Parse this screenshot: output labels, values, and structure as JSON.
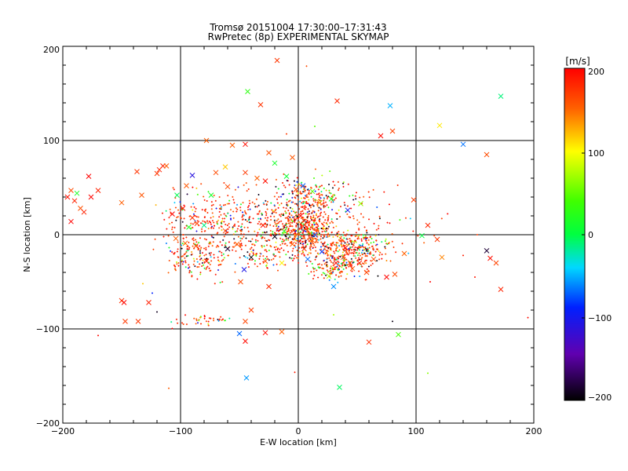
{
  "chart_data": {
    "type": "scatter",
    "title": "Tromsø 20151004 17:30:00–17:31:43",
    "subtitle": "RwPretec (8p) EXPERIMENTAL SKYMAP",
    "xlabel": "E-W location [km]",
    "ylabel": "N-S location [km]",
    "xlim": [
      -200,
      200
    ],
    "ylim": [
      -200,
      200
    ],
    "xticks": [
      "−200",
      "−100",
      "0",
      "100",
      "200"
    ],
    "yticks": [
      "−200",
      "−100",
      "0",
      "100",
      "200"
    ],
    "grid": true,
    "colorbar": {
      "unit": "[m/s]",
      "min": -200,
      "max": 200,
      "ticks": [
        "200",
        "100",
        "0",
        "−100",
        "−200"
      ]
    },
    "markers": {
      "cross": "x",
      "dot": "+"
    },
    "series": [
      {
        "marker": "x",
        "points": [
          [
            -18,
            185
          ],
          [
            -43,
            152
          ],
          [
            -32,
            138
          ],
          [
            33,
            142
          ],
          [
            78,
            137
          ],
          [
            120,
            116
          ],
          [
            172,
            147
          ],
          [
            80,
            110
          ],
          [
            70,
            105
          ],
          [
            140,
            96
          ],
          [
            160,
            85
          ],
          [
            -45,
            96
          ],
          [
            -78,
            100
          ],
          [
            -56,
            95
          ],
          [
            -25,
            87
          ],
          [
            -20,
            76
          ],
          [
            -5,
            82
          ],
          [
            -115,
            73
          ],
          [
            -118,
            69
          ],
          [
            -112,
            73
          ],
          [
            -120,
            65
          ],
          [
            -90,
            63
          ],
          [
            -70,
            66
          ],
          [
            -62,
            72
          ],
          [
            -95,
            52
          ],
          [
            -137,
            67
          ],
          [
            -178,
            62
          ],
          [
            -193,
            47
          ],
          [
            -188,
            44
          ],
          [
            -196,
            40
          ],
          [
            -190,
            36
          ],
          [
            -185,
            28
          ],
          [
            -182,
            24
          ],
          [
            -170,
            47
          ],
          [
            -176,
            40
          ],
          [
            -150,
            34
          ],
          [
            -133,
            42
          ],
          [
            -193,
            14
          ],
          [
            -45,
            66
          ],
          [
            -35,
            60
          ],
          [
            -28,
            57
          ],
          [
            -10,
            62
          ],
          [
            -2,
            48
          ],
          [
            4,
            52
          ],
          [
            12,
            46
          ],
          [
            18,
            34
          ],
          [
            28,
            38
          ],
          [
            42,
            26
          ],
          [
            53,
            33
          ],
          [
            -60,
            51
          ],
          [
            -74,
            42
          ],
          [
            -103,
            42
          ],
          [
            -98,
            28
          ],
          [
            -107,
            22
          ],
          [
            -90,
            18
          ],
          [
            -86,
            12
          ],
          [
            -93,
            8
          ],
          [
            -104,
            -4
          ],
          [
            -96,
            -9
          ],
          [
            -87,
            -12
          ],
          [
            -60,
            -15
          ],
          [
            -40,
            -24
          ],
          [
            -28,
            -28
          ],
          [
            -14,
            -30
          ],
          [
            8,
            -26
          ],
          [
            20,
            -18
          ],
          [
            32,
            -30
          ],
          [
            38,
            -24
          ],
          [
            46,
            -36
          ],
          [
            52,
            -30
          ],
          [
            58,
            -40
          ],
          [
            64,
            -26
          ],
          [
            75,
            -45
          ],
          [
            82,
            -42
          ],
          [
            -46,
            -37
          ],
          [
            -49,
            -50
          ],
          [
            -25,
            -55
          ],
          [
            -40,
            -80
          ],
          [
            -45,
            -92
          ],
          [
            -150,
            -70
          ],
          [
            -148,
            -72
          ],
          [
            -127,
            -72
          ],
          [
            -147,
            -92
          ],
          [
            -136,
            -92
          ],
          [
            -50,
            -105
          ],
          [
            -45,
            -113
          ],
          [
            -44,
            -152
          ],
          [
            -28,
            -104
          ],
          [
            -14,
            -103
          ],
          [
            60,
            -114
          ],
          [
            85,
            -106
          ],
          [
            35,
            -162
          ],
          [
            105,
            -1
          ],
          [
            110,
            10
          ],
          [
            118,
            -5
          ],
          [
            98,
            37
          ],
          [
            122,
            -24
          ],
          [
            160,
            -17
          ],
          [
            163,
            -25
          ],
          [
            168,
            -30
          ],
          [
            172,
            -58
          ],
          [
            90,
            -20
          ],
          [
            40,
            -14
          ],
          [
            44,
            -30
          ],
          [
            26,
            -44
          ],
          [
            30,
            -55
          ],
          [
            -5,
            -10
          ],
          [
            5,
            -15
          ],
          [
            12,
            -6
          ],
          [
            -12,
            4
          ],
          [
            2,
            20
          ],
          [
            -30,
            10
          ],
          [
            -52,
            -10
          ],
          [
            -62,
            4
          ],
          [
            -78,
            -28
          ],
          [
            -80,
            10
          ],
          [
            -20,
            -2
          ],
          [
            14,
            0
          ]
        ]
      },
      {
        "marker": "+",
        "count": 1700,
        "clusters": [
          [
            -60,
            15,
            55,
            32,
            350
          ],
          [
            5,
            5,
            25,
            22,
            420
          ],
          [
            45,
            -15,
            30,
            20,
            320
          ],
          [
            10,
            40,
            30,
            20,
            180
          ],
          [
            -85,
            -25,
            28,
            20,
            150
          ],
          [
            30,
            -35,
            22,
            12,
            120
          ],
          [
            -30,
            -20,
            40,
            18,
            120
          ],
          [
            -80,
            -92,
            28,
            6,
            40
          ],
          [
            20,
            15,
            80,
            40,
            200
          ]
        ],
        "scattered": [
          [
            -110,
            -163
          ],
          [
            110,
            -147
          ],
          [
            -3,
            -146
          ],
          [
            -170,
            -107
          ],
          [
            -132,
            -52
          ],
          [
            -124,
            -62
          ],
          [
            140,
            -22
          ],
          [
            152,
            0
          ],
          [
            195,
            -88
          ],
          [
            7,
            179
          ],
          [
            14,
            115
          ],
          [
            -10,
            107
          ],
          [
            112,
            -50
          ],
          [
            150,
            -45
          ],
          [
            -120,
            -82
          ],
          [
            30,
            -85
          ],
          [
            80,
            -92
          ]
        ]
      }
    ]
  }
}
